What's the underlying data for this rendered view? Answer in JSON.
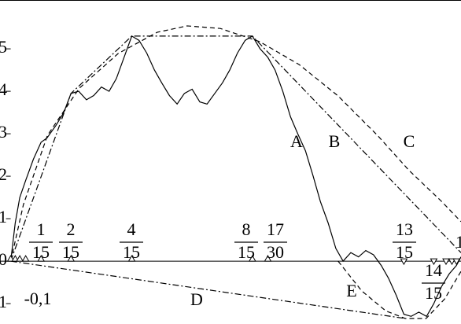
{
  "chart_data": {
    "type": "line",
    "xlim": [
      -0.0236,
      0.993
    ],
    "ylim": [
      -1.48,
      6.15
    ],
    "yticks": [
      -1,
      0,
      1,
      2,
      3,
      4,
      5
    ],
    "series": [
      {
        "name": "A",
        "color": "#000000",
        "style": "solid",
        "x": [
          0,
          0.01,
          0.02,
          0.033,
          0.05,
          0.067,
          0.08,
          0.1,
          0.117,
          0.133,
          0.15,
          0.167,
          0.183,
          0.2,
          0.217,
          0.233,
          0.25,
          0.267,
          0.283,
          0.3,
          0.317,
          0.333,
          0.35,
          0.367,
          0.383,
          0.4,
          0.417,
          0.433,
          0.45,
          0.467,
          0.483,
          0.5,
          0.517,
          0.533,
          0.55,
          0.567,
          0.583,
          0.6,
          0.617,
          0.633,
          0.65,
          0.667,
          0.683,
          0.7,
          0.717,
          0.733,
          0.75,
          0.767,
          0.783,
          0.8,
          0.817,
          0.833,
          0.85,
          0.867,
          0.883,
          0.9,
          0.917,
          0.933,
          0.95,
          0.967,
          0.983,
          0.993
        ],
        "values": [
          0,
          0.9,
          1.5,
          1.9,
          2.4,
          2.8,
          2.9,
          3.2,
          3.5,
          3.95,
          4.0,
          3.8,
          3.9,
          4.1,
          4.0,
          4.3,
          4.8,
          5.3,
          5.2,
          4.9,
          4.5,
          4.2,
          3.9,
          3.7,
          3.95,
          4.05,
          3.75,
          3.7,
          3.95,
          4.2,
          4.5,
          4.9,
          5.2,
          5.3,
          5.0,
          4.8,
          4.5,
          4.0,
          3.4,
          3.0,
          2.6,
          2.0,
          1.4,
          0.9,
          0.3,
          0.0,
          0.2,
          0.1,
          0.25,
          0.15,
          -0.1,
          -0.4,
          -0.8,
          -1.25,
          -1.3,
          -1.2,
          -1.3,
          -1.0,
          -0.6,
          -0.3,
          -0.1,
          0.1
        ]
      },
      {
        "name": "B",
        "color": "#000000",
        "style": "dashdot",
        "x": [
          0,
          0.133,
          0.267,
          0.533,
          0.993
        ],
        "values": [
          0,
          3.95,
          5.3,
          5.3,
          0.2
        ]
      },
      {
        "name": "C",
        "color": "#000000",
        "style": "dashed",
        "x": [
          0,
          0.028,
          0.081,
          0.151,
          0.237,
          0.323,
          0.389,
          0.462,
          0.549,
          0.636,
          0.722,
          0.809,
          0.879,
          0.948,
          0.993
        ],
        "values": [
          0,
          1.33,
          2.96,
          4.07,
          4.89,
          5.39,
          5.54,
          5.48,
          5.17,
          4.63,
          3.89,
          2.96,
          2.13,
          1.43,
          0.93
        ]
      },
      {
        "name": "D",
        "color": "#000000",
        "style": "dashdot",
        "x": [
          0,
          0.87
        ],
        "values": [
          0,
          -1.35
        ]
      },
      {
        "name": "E",
        "color": "#000000",
        "style": "dashed",
        "x": [
          0.722,
          0.774,
          0.827,
          0.87,
          0.916,
          0.957,
          0.993
        ],
        "values": [
          0,
          -0.7,
          -1.17,
          -1.35,
          -1.35,
          -0.89,
          -0.24
        ]
      }
    ],
    "up_markers": [
      0,
      0.01,
      0.02,
      0.033,
      0.067,
      0.133,
      0.267,
      0.533,
      0.567
    ],
    "down_markers": [
      0.867,
      0.933,
      0.96,
      0.973,
      0.983
    ],
    "fractions": [
      {
        "num": "1",
        "den": "15"
      },
      {
        "num": "2",
        "den": "15"
      },
      {
        "num": "4",
        "den": "15"
      },
      {
        "num": "8",
        "den": "15"
      },
      {
        "num": "17",
        "den": "30"
      },
      {
        "num": "13",
        "den": "15"
      },
      {
        "num": "14",
        "den": "15"
      }
    ],
    "annotations": [
      "-0,1",
      "1"
    ]
  }
}
